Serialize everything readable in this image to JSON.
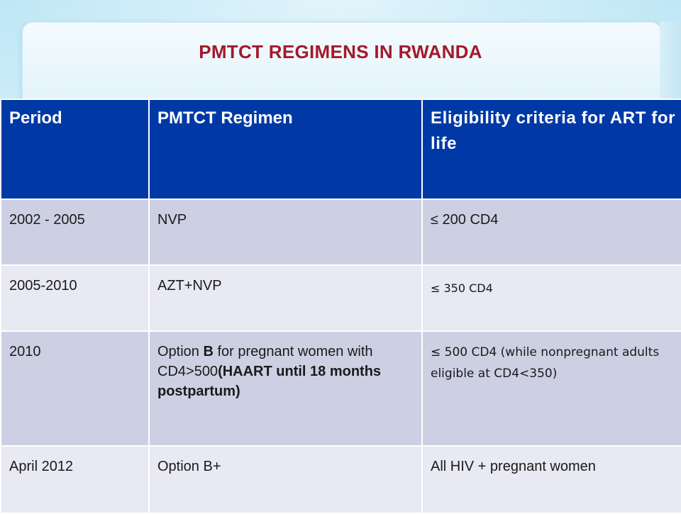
{
  "slide": {
    "title": "PMTCT REGIMENS IN RWANDA"
  },
  "table": {
    "headers": [
      "Period",
      "PMTCT Regimen",
      "Eligibility criteria for ART for life"
    ],
    "rows": [
      {
        "period": "2002 - 2005",
        "regimen_parts": [
          "NVP"
        ],
        "eligibility": "≤ 200 CD4"
      },
      {
        "period": "2005-2010",
        "regimen_parts": [
          "AZT+NVP"
        ],
        "eligibility": "≤ 350 CD4"
      },
      {
        "period": "2010",
        "regimen_parts": [
          "Option ",
          "B",
          " for pregnant women with CD4>500",
          "(HAART until 18 months postpartum)"
        ],
        "eligibility": "≤ 500 CD4 (while nonpregnant adults eligible at CD4<350)"
      },
      {
        "period": "April 2012",
        "regimen_parts": [
          "Option B+"
        ],
        "eligibility": "All HIV + pregnant women"
      }
    ]
  },
  "colors": {
    "title": "#a3192b",
    "header_bg": "#0039a6",
    "row_odd": "#cdd0e3",
    "row_even": "#e8e9f3"
  }
}
